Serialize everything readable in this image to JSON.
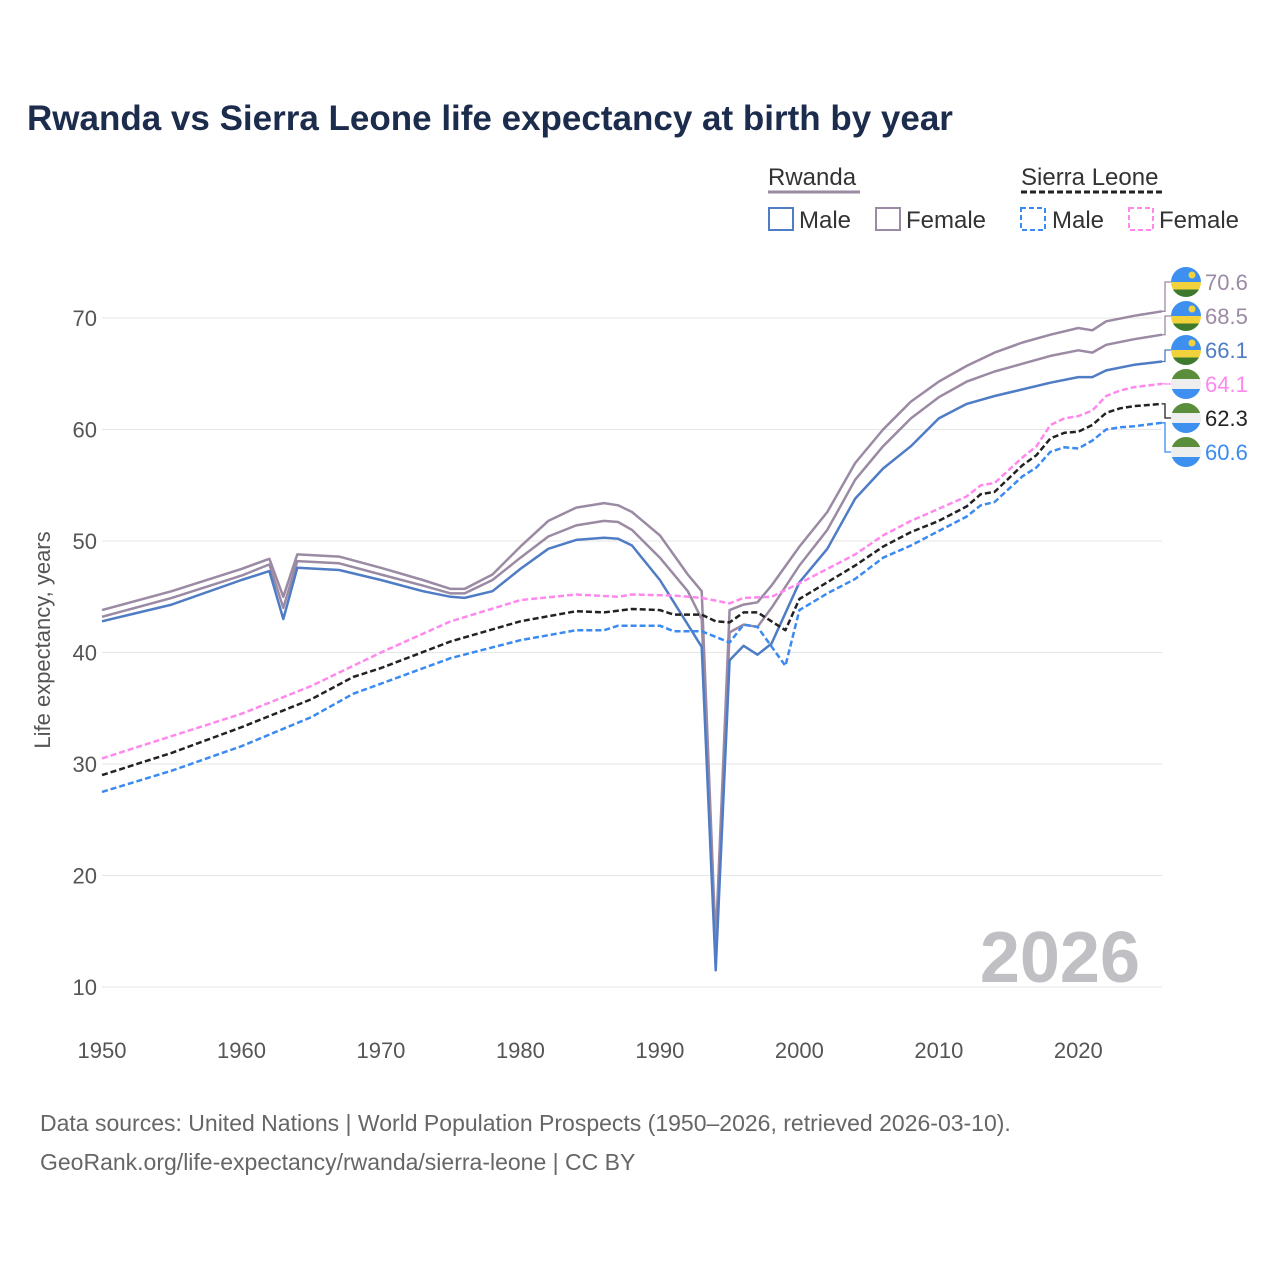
{
  "chart_data": {
    "type": "line",
    "title": "Rwanda vs Sierra Leone life expectancy at birth by year",
    "xlabel": "",
    "ylabel": "Life expectancy, years",
    "xlim": [
      1950,
      2026
    ],
    "ylim": [
      8,
      73
    ],
    "xticks": [
      1950,
      1960,
      1970,
      1980,
      1990,
      2000,
      2010,
      2020
    ],
    "yticks": [
      10,
      20,
      30,
      40,
      50,
      60,
      70
    ],
    "grid": true,
    "year_watermark": "2026",
    "legend": {
      "placement": "top-right",
      "groups": [
        {
          "name": "Rwanda",
          "color": "#9b8aa3",
          "style": "solid",
          "items": [
            {
              "label": "Male",
              "color": "#4f7cc4"
            },
            {
              "label": "Female",
              "color": "#9b8aa3"
            }
          ]
        },
        {
          "name": "Sierra Leone",
          "color": "#222222",
          "style": "dashed",
          "items": [
            {
              "label": "Male",
              "color": "#3b8af0"
            },
            {
              "label": "Female",
              "color": "#ff88ee"
            }
          ]
        }
      ]
    },
    "series": [
      {
        "name": "Rwanda Female",
        "color": "#9b8aa3",
        "dashed": false,
        "end_label": "70.6",
        "flag": "rwanda",
        "x": [
          1950,
          1955,
          1960,
          1962,
          1963,
          1964,
          1967,
          1970,
          1973,
          1975,
          1976,
          1978,
          1980,
          1982,
          1984,
          1986,
          1987,
          1988,
          1990,
          1992,
          1993,
          1994,
          1995,
          1996,
          1997,
          1998,
          2000,
          2002,
          2004,
          2006,
          2008,
          2010,
          2012,
          2014,
          2016,
          2018,
          2020,
          2021,
          2022,
          2024,
          2026
        ],
        "y": [
          43.8,
          45.5,
          47.5,
          48.4,
          45.0,
          48.8,
          48.6,
          47.6,
          46.5,
          45.7,
          45.7,
          47.0,
          49.5,
          51.8,
          53.0,
          53.4,
          53.2,
          52.6,
          50.5,
          47.0,
          45.5,
          14.0,
          43.8,
          44.3,
          44.5,
          46.0,
          49.5,
          52.6,
          57.0,
          60.0,
          62.5,
          64.3,
          65.7,
          66.9,
          67.8,
          68.5,
          69.1,
          68.9,
          69.7,
          70.2,
          70.6
        ]
      },
      {
        "name": "Rwanda",
        "color": "#9b8aa3",
        "dashed": false,
        "end_label": "68.5",
        "flag": "rwanda",
        "x": [
          1950,
          1955,
          1960,
          1962,
          1963,
          1964,
          1967,
          1970,
          1973,
          1975,
          1976,
          1978,
          1980,
          1982,
          1984,
          1986,
          1987,
          1988,
          1990,
          1992,
          1993,
          1994,
          1995,
          1996,
          1997,
          1998,
          2000,
          2002,
          2004,
          2006,
          2008,
          2010,
          2012,
          2014,
          2016,
          2018,
          2020,
          2021,
          2022,
          2024,
          2026
        ],
        "y": [
          43.2,
          44.9,
          46.9,
          47.9,
          44.0,
          48.2,
          48.0,
          47.0,
          46.0,
          45.3,
          45.3,
          46.5,
          48.5,
          50.4,
          51.4,
          51.8,
          51.7,
          51.0,
          48.5,
          45.5,
          43.0,
          13.0,
          41.8,
          42.5,
          42.3,
          44.0,
          47.8,
          51.0,
          55.5,
          58.5,
          61.0,
          62.9,
          64.3,
          65.2,
          65.9,
          66.6,
          67.1,
          66.9,
          67.6,
          68.1,
          68.5
        ]
      },
      {
        "name": "Rwanda Male",
        "color": "#4f7cc4",
        "dashed": false,
        "end_label": "66.1",
        "flag": "rwanda",
        "x": [
          1950,
          1955,
          1960,
          1962,
          1963,
          1964,
          1967,
          1970,
          1973,
          1975,
          1976,
          1978,
          1980,
          1982,
          1984,
          1986,
          1987,
          1988,
          1990,
          1992,
          1993,
          1994,
          1995,
          1996,
          1997,
          1998,
          2000,
          2002,
          2004,
          2006,
          2008,
          2010,
          2012,
          2014,
          2016,
          2018,
          2020,
          2021,
          2022,
          2024,
          2026
        ],
        "y": [
          42.8,
          44.3,
          46.5,
          47.3,
          43.0,
          47.6,
          47.4,
          46.5,
          45.5,
          45.0,
          44.9,
          45.5,
          47.5,
          49.3,
          50.1,
          50.3,
          50.2,
          49.6,
          46.5,
          42.5,
          40.5,
          11.5,
          39.3,
          40.6,
          39.8,
          40.8,
          46.3,
          49.3,
          53.8,
          56.5,
          58.5,
          61.0,
          62.3,
          63.0,
          63.6,
          64.2,
          64.7,
          64.7,
          65.3,
          65.8,
          66.1
        ]
      },
      {
        "name": "Sierra Leone Female",
        "color": "#ff88ee",
        "dashed": true,
        "end_label": "64.1",
        "flag": "sierra-leone",
        "x": [
          1950,
          1955,
          1960,
          1965,
          1970,
          1975,
          1980,
          1984,
          1987,
          1988,
          1991,
          1993,
          1995,
          1996,
          1998,
          2000,
          2002,
          2004,
          2006,
          2008,
          2010,
          2012,
          2013,
          2014,
          2016,
          2017,
          2018,
          2019,
          2020,
          2021,
          2022,
          2023,
          2024,
          2026
        ],
        "y": [
          30.5,
          32.5,
          34.5,
          37.0,
          40.0,
          42.8,
          44.7,
          45.2,
          45.0,
          45.2,
          45.1,
          44.9,
          44.4,
          44.9,
          45.0,
          46.2,
          47.5,
          48.8,
          50.5,
          51.8,
          52.9,
          54.0,
          55.0,
          55.2,
          57.5,
          58.5,
          60.4,
          61.0,
          61.2,
          61.7,
          63.0,
          63.5,
          63.8,
          64.1
        ]
      },
      {
        "name": "Sierra Leone",
        "color": "#222222",
        "dashed": true,
        "end_label": "62.3",
        "flag": "sierra-leone",
        "x": [
          1950,
          1955,
          1960,
          1965,
          1968,
          1970,
          1975,
          1980,
          1984,
          1986,
          1988,
          1990,
          1991,
          1993,
          1994,
          1995,
          1996,
          1997,
          1999,
          2000,
          2002,
          2004,
          2006,
          2008,
          2010,
          2012,
          2013,
          2014,
          2016,
          2017,
          2018,
          2019,
          2020,
          2021,
          2022,
          2023,
          2024,
          2026
        ],
        "y": [
          29.0,
          31.0,
          33.3,
          35.8,
          37.8,
          38.6,
          41.0,
          42.8,
          43.7,
          43.6,
          43.9,
          43.8,
          43.4,
          43.4,
          42.8,
          42.7,
          43.6,
          43.6,
          42.0,
          44.8,
          46.3,
          47.8,
          49.5,
          50.8,
          51.8,
          53.1,
          54.2,
          54.4,
          56.8,
          57.7,
          59.2,
          59.7,
          59.8,
          60.4,
          61.5,
          61.9,
          62.1,
          62.3
        ]
      },
      {
        "name": "Sierra Leone Male",
        "color": "#3b8af0",
        "dashed": true,
        "end_label": "60.6",
        "flag": "sierra-leone",
        "x": [
          1950,
          1955,
          1960,
          1965,
          1968,
          1970,
          1975,
          1980,
          1984,
          1986,
          1987,
          1990,
          1991,
          1993,
          1995,
          1996,
          1997,
          1999,
          2000,
          2002,
          2004,
          2006,
          2008,
          2010,
          2012,
          2013,
          2014,
          2016,
          2017,
          2018,
          2019,
          2020,
          2021,
          2022,
          2023,
          2024,
          2026
        ],
        "y": [
          27.5,
          29.4,
          31.6,
          34.2,
          36.3,
          37.2,
          39.5,
          41.1,
          42.0,
          42.0,
          42.4,
          42.4,
          41.9,
          41.9,
          40.9,
          42.5,
          42.3,
          38.8,
          43.8,
          45.3,
          46.6,
          48.5,
          49.6,
          50.9,
          52.2,
          53.2,
          53.5,
          55.8,
          56.6,
          58.0,
          58.4,
          58.3,
          59.0,
          60.0,
          60.2,
          60.3,
          60.6
        ]
      }
    ]
  },
  "footer": {
    "line1": "Data sources: United Nations | World Population Prospects (1950–2026, retrieved 2026-03-10).",
    "line2": "GeoRank.org/life-expectancy/rwanda/sierra-leone | CC BY"
  }
}
